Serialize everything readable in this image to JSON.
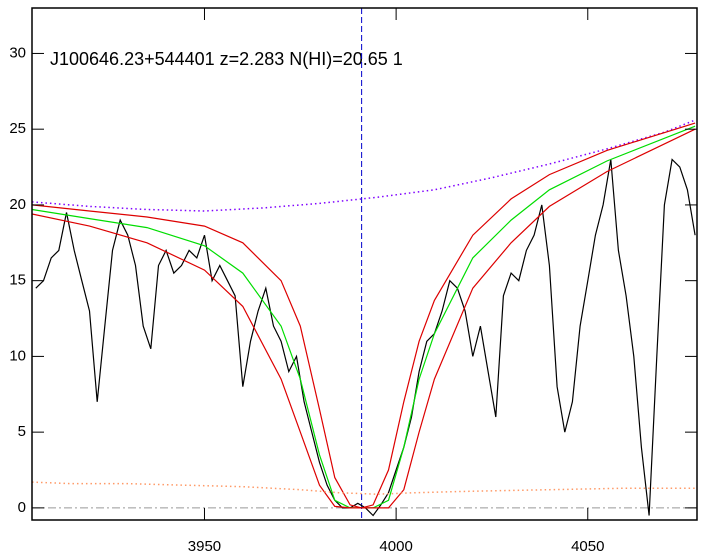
{
  "chart_data": {
    "type": "line",
    "annotation": "J100646.23+544401 z=2.283 N(HI)=20.65 1",
    "xlim": [
      3905,
      4078.5
    ],
    "ylim": [
      -0.8,
      33
    ],
    "xticks": [
      3950,
      4000,
      4050
    ],
    "yticks": [
      0,
      5,
      10,
      15,
      20,
      25,
      30
    ],
    "vline": 3991,
    "hline": 0,
    "series": [
      {
        "style": "step",
        "color": "#000000",
        "x": [
          3906,
          3908,
          3910,
          3912,
          3914,
          3916,
          3918,
          3920,
          3922,
          3924,
          3926,
          3928,
          3930,
          3932,
          3934,
          3936,
          3938,
          3940,
          3942,
          3944,
          3946,
          3948,
          3950,
          3952,
          3954,
          3956,
          3958,
          3960,
          3962,
          3964,
          3966,
          3968,
          3970,
          3972,
          3974,
          3976,
          3978,
          3980,
          3982,
          3984,
          3986,
          3988,
          3990,
          3992,
          3994,
          3996,
          3998,
          4000,
          4002,
          4004,
          4006,
          4008,
          4010,
          4012,
          4014,
          4016,
          4018,
          4020,
          4022,
          4024,
          4026,
          4028,
          4030,
          4032,
          4034,
          4036,
          4038,
          4040,
          4042,
          4044,
          4046,
          4048,
          4050,
          4052,
          4054,
          4056,
          4058,
          4060,
          4062,
          4064,
          4066,
          4068,
          4070,
          4072,
          4074,
          4076,
          4078
        ],
        "values": [
          14.5,
          15,
          16.5,
          17,
          19.5,
          17,
          15,
          13,
          7,
          12,
          17,
          19,
          18,
          16,
          12,
          10.5,
          16,
          17,
          15.5,
          16,
          17,
          16.5,
          18,
          15,
          16,
          15,
          14,
          8,
          11,
          13,
          14.5,
          12,
          11,
          9,
          10,
          7,
          5,
          3,
          1.5,
          0.5,
          0,
          0,
          0.3,
          0,
          -0.5,
          0.2,
          1,
          2.5,
          4,
          6,
          9,
          11,
          11.5,
          13,
          15,
          14.5,
          13,
          10,
          12,
          9,
          6,
          14,
          15.5,
          15,
          17,
          18,
          20,
          16,
          8,
          5,
          7,
          12,
          15,
          18,
          20,
          23,
          17,
          14,
          10,
          4,
          -0.5,
          10,
          20,
          23,
          22.5,
          21,
          18
        ]
      },
      {
        "style": "dotted",
        "color": "#7f00ff",
        "x": [
          3905,
          3920,
          3935,
          3950,
          3965,
          3980,
          3995,
          4010,
          4025,
          4040,
          4055,
          4070,
          4078
        ],
        "values": [
          20.2,
          19.9,
          19.7,
          19.6,
          19.8,
          20.1,
          20.5,
          21.0,
          21.8,
          22.7,
          23.7,
          24.8,
          25.6
        ]
      },
      {
        "style": "solid",
        "color": "#00dd00",
        "x": [
          3905,
          3920,
          3935,
          3950,
          3960,
          3970,
          3975,
          3980,
          3984,
          3988,
          3991,
          3994,
          3998,
          4002,
          4006,
          4010,
          4020,
          4030,
          4040,
          4055,
          4078
        ],
        "values": [
          19.7,
          19.1,
          18.5,
          17.3,
          15.5,
          12,
          8.5,
          3.5,
          0.5,
          0,
          0,
          0,
          0.5,
          4,
          8.5,
          11.5,
          16.5,
          19,
          21,
          22.9,
          25.2
        ]
      },
      {
        "style": "solid",
        "color": "#dd0000",
        "x": [
          3905,
          3920,
          3935,
          3950,
          3960,
          3970,
          3975,
          3980,
          3984,
          3988,
          3991,
          3994,
          3998,
          4002,
          4006,
          4010,
          4020,
          4030,
          4040,
          4055,
          4078
        ],
        "values": [
          20,
          19.6,
          19.2,
          18.6,
          17.5,
          15,
          12,
          6.5,
          2,
          0.2,
          0,
          0.2,
          2.5,
          7,
          11,
          13.7,
          18,
          20.4,
          22,
          23.6,
          25.4
        ]
      },
      {
        "style": "solid",
        "color": "#dd0000",
        "x": [
          3905,
          3920,
          3935,
          3950,
          3960,
          3970,
          3975,
          3980,
          3984,
          3988,
          3991,
          3994,
          3998,
          4002,
          4006,
          4010,
          4020,
          4030,
          4040,
          4055,
          4078
        ],
        "values": [
          19.4,
          18.6,
          17.5,
          15.7,
          13.3,
          8.5,
          5,
          1.5,
          0.1,
          0,
          0,
          0,
          0,
          1.2,
          5,
          8.5,
          14.5,
          17.5,
          19.9,
          22.2,
          25
        ]
      },
      {
        "style": "dotted",
        "color": "#ff9966",
        "x": [
          3905,
          3915,
          3930,
          3945,
          3960,
          3975,
          3985,
          3995,
          4005,
          4020,
          4040,
          4060,
          4078
        ],
        "values": [
          1.7,
          1.6,
          1.6,
          1.5,
          1.4,
          1.2,
          1.0,
          0.9,
          1.0,
          1.1,
          1.2,
          1.3,
          1.3
        ]
      }
    ]
  }
}
